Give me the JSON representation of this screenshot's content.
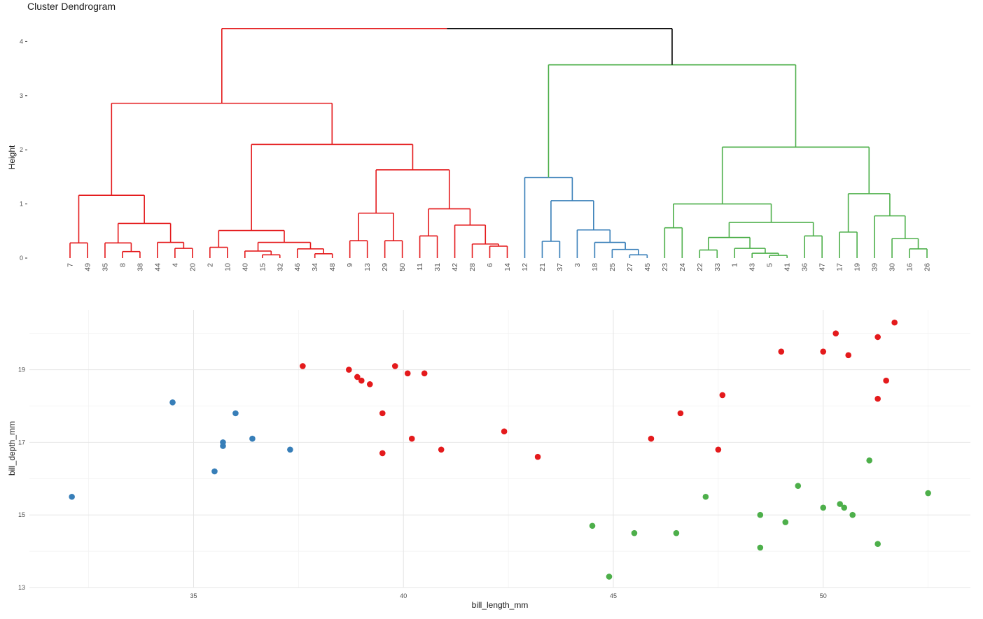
{
  "chart_data": [
    {
      "type": "dendrogram",
      "title": "Cluster Dendrogram",
      "ylabel": "Height",
      "ylim": [
        0,
        4.3
      ],
      "yticks": [
        0,
        1,
        2,
        3,
        4
      ],
      "leaf_order": [
        "7",
        "49",
        "35",
        "8",
        "38",
        "44",
        "4",
        "20",
        "2",
        "10",
        "40",
        "15",
        "32",
        "46",
        "34",
        "48",
        "9",
        "13",
        "29",
        "50",
        "11",
        "31",
        "42",
        "28",
        "6",
        "14",
        "12",
        "21",
        "37",
        "3",
        "18",
        "25",
        "27",
        "45",
        "23",
        "24",
        "22",
        "33",
        "1",
        "43",
        "5",
        "41",
        "36",
        "47",
        "17",
        "19",
        "39",
        "30",
        "16",
        "26"
      ],
      "leaf_clusters": [
        1,
        1,
        1,
        1,
        1,
        1,
        1,
        1,
        1,
        1,
        1,
        1,
        1,
        1,
        1,
        1,
        1,
        1,
        1,
        1,
        1,
        1,
        1,
        1,
        1,
        1,
        2,
        2,
        2,
        2,
        2,
        2,
        2,
        2,
        3,
        3,
        3,
        3,
        3,
        3,
        3,
        3,
        3,
        3,
        3,
        3,
        3,
        3,
        3,
        3
      ],
      "merges": [
        {
          "left": "L0",
          "right": "L1",
          "height": 0.28,
          "cluster": 1
        },
        {
          "left": "L3",
          "right": "L4",
          "height": 0.12,
          "cluster": 1
        },
        {
          "left": "L2",
          "right": "N1",
          "height": 0.28,
          "cluster": 1
        },
        {
          "left": "L6",
          "right": "L7",
          "height": 0.18,
          "cluster": 1
        },
        {
          "left": "L5",
          "right": "N3",
          "height": 0.29,
          "cluster": 1
        },
        {
          "left": "N2",
          "right": "N4",
          "height": 0.64,
          "cluster": 1
        },
        {
          "left": "N0",
          "right": "N5",
          "height": 1.16,
          "cluster": 1
        },
        {
          "left": "L8",
          "right": "L9",
          "height": 0.2,
          "cluster": 1
        },
        {
          "left": "L11",
          "right": "L12",
          "height": 0.06,
          "cluster": 1
        },
        {
          "left": "L10",
          "right": "N8",
          "height": 0.13,
          "cluster": 1
        },
        {
          "left": "L14",
          "right": "L15",
          "height": 0.08,
          "cluster": 1
        },
        {
          "left": "L13",
          "right": "N10",
          "height": 0.17,
          "cluster": 1
        },
        {
          "left": "N9",
          "right": "N11",
          "height": 0.29,
          "cluster": 1
        },
        {
          "left": "N7",
          "right": "N12",
          "height": 0.51,
          "cluster": 1
        },
        {
          "left": "L16",
          "right": "L17",
          "height": 0.32,
          "cluster": 1
        },
        {
          "left": "L18",
          "right": "L19",
          "height": 0.32,
          "cluster": 1
        },
        {
          "left": "N14",
          "right": "N15",
          "height": 0.83,
          "cluster": 1
        },
        {
          "left": "L20",
          "right": "L21",
          "height": 0.41,
          "cluster": 1
        },
        {
          "left": "L24",
          "right": "L25",
          "height": 0.22,
          "cluster": 1
        },
        {
          "left": "L23",
          "right": "N18",
          "height": 0.26,
          "cluster": 1
        },
        {
          "left": "L22",
          "right": "N19",
          "height": 0.61,
          "cluster": 1
        },
        {
          "left": "N17",
          "right": "N20",
          "height": 0.91,
          "cluster": 1
        },
        {
          "left": "N16",
          "right": "N21",
          "height": 1.63,
          "cluster": 1
        },
        {
          "left": "N13",
          "right": "N22",
          "height": 2.1,
          "cluster": 1
        },
        {
          "left": "N6",
          "right": "N23",
          "height": 2.86,
          "cluster": 1
        },
        {
          "left": "L27",
          "right": "L28",
          "height": 0.31,
          "cluster": 2
        },
        {
          "left": "L32",
          "right": "L33",
          "height": 0.06,
          "cluster": 2
        },
        {
          "left": "L31",
          "right": "N26",
          "height": 0.16,
          "cluster": 2
        },
        {
          "left": "L30",
          "right": "N27",
          "height": 0.29,
          "cluster": 2
        },
        {
          "left": "L29",
          "right": "N28",
          "height": 0.52,
          "cluster": 2
        },
        {
          "left": "N25",
          "right": "N29",
          "height": 1.06,
          "cluster": 2
        },
        {
          "left": "L26",
          "right": "N30",
          "height": 1.49,
          "cluster": 2
        },
        {
          "left": "L34",
          "right": "L35",
          "height": 0.56,
          "cluster": 3
        },
        {
          "left": "L36",
          "right": "L37",
          "height": 0.15,
          "cluster": 3
        },
        {
          "left": "L40",
          "right": "L41",
          "height": 0.05,
          "cluster": 3
        },
        {
          "left": "L39",
          "right": "N34",
          "height": 0.09,
          "cluster": 3
        },
        {
          "left": "L38",
          "right": "N35",
          "height": 0.18,
          "cluster": 3
        },
        {
          "left": "N33",
          "right": "N36",
          "height": 0.38,
          "cluster": 3
        },
        {
          "left": "L42",
          "right": "L43",
          "height": 0.41,
          "cluster": 3
        },
        {
          "left": "N37",
          "right": "N38",
          "height": 0.66,
          "cluster": 3
        },
        {
          "left": "N32",
          "right": "N39",
          "height": 1.0,
          "cluster": 3
        },
        {
          "left": "L44",
          "right": "L45",
          "height": 0.48,
          "cluster": 3
        },
        {
          "left": "L48",
          "right": "L49",
          "height": 0.17,
          "cluster": 3
        },
        {
          "left": "L47",
          "right": "N42",
          "height": 0.36,
          "cluster": 3
        },
        {
          "left": "L46",
          "right": "N43",
          "height": 0.78,
          "cluster": 3
        },
        {
          "left": "N41",
          "right": "N44",
          "height": 1.19,
          "cluster": 3
        },
        {
          "left": "N40",
          "right": "N45",
          "height": 2.05,
          "cluster": 3
        },
        {
          "left": "N31",
          "right": "N46",
          "height": 3.57,
          "cluster": 3
        },
        {
          "left": "N24",
          "right": "N47",
          "height": 4.24,
          "cluster": 0
        }
      ]
    },
    {
      "type": "scatter",
      "xlabel": "bill_length_mm",
      "ylabel": "bill_depth_mm",
      "xlim": [
        31.5,
        53.5
      ],
      "ylim": [
        13,
        20.8
      ],
      "xticks": [
        35,
        40,
        45,
        50
      ],
      "yticks": [
        13,
        15,
        17,
        19
      ],
      "grid": true,
      "series": [
        {
          "cluster": 1,
          "points": [
            [
              37.6,
              19.1
            ],
            [
              38.7,
              19.0
            ],
            [
              38.9,
              18.8
            ],
            [
              39.0,
              18.7
            ],
            [
              39.2,
              18.6
            ],
            [
              39.8,
              19.1
            ],
            [
              40.1,
              18.9
            ],
            [
              40.5,
              18.9
            ],
            [
              39.5,
              17.8
            ],
            [
              40.2,
              17.1
            ],
            [
              39.5,
              16.7
            ],
            [
              40.9,
              16.8
            ],
            [
              42.4,
              17.3
            ],
            [
              43.2,
              16.6
            ],
            [
              45.9,
              17.1
            ],
            [
              46.6,
              17.8
            ],
            [
              47.5,
              16.8
            ],
            [
              47.6,
              18.3
            ],
            [
              49.0,
              19.5
            ],
            [
              50.0,
              19.5
            ],
            [
              50.3,
              20.0
            ],
            [
              50.6,
              19.4
            ],
            [
              51.3,
              19.9
            ],
            [
              51.7,
              20.3
            ],
            [
              51.5,
              18.7
            ],
            [
              51.3,
              18.2
            ]
          ]
        },
        {
          "cluster": 2,
          "points": [
            [
              32.1,
              15.5
            ],
            [
              34.5,
              18.1
            ],
            [
              36.0,
              17.8
            ],
            [
              35.7,
              17.0
            ],
            [
              35.7,
              16.9
            ],
            [
              36.4,
              17.1
            ],
            [
              37.3,
              16.8
            ],
            [
              35.5,
              16.2
            ]
          ]
        },
        {
          "cluster": 3,
          "points": [
            [
              44.5,
              14.7
            ],
            [
              44.9,
              13.3
            ],
            [
              45.5,
              14.5
            ],
            [
              46.5,
              14.5
            ],
            [
              47.2,
              15.5
            ],
            [
              48.5,
              15.0
            ],
            [
              48.5,
              14.1
            ],
            [
              49.1,
              14.8
            ],
            [
              49.4,
              15.8
            ],
            [
              50.0,
              15.2
            ],
            [
              50.4,
              15.3
            ],
            [
              50.5,
              15.2
            ],
            [
              50.7,
              15.0
            ],
            [
              51.1,
              16.5
            ],
            [
              51.3,
              14.2
            ],
            [
              52.5,
              15.6
            ]
          ]
        }
      ]
    }
  ],
  "colors": {
    "1": "#e41a1c",
    "2": "#377eb8",
    "3": "#4daf4a",
    "0": "#000000",
    "grid": "#e5e5e5",
    "text": "#4d4d4d"
  }
}
